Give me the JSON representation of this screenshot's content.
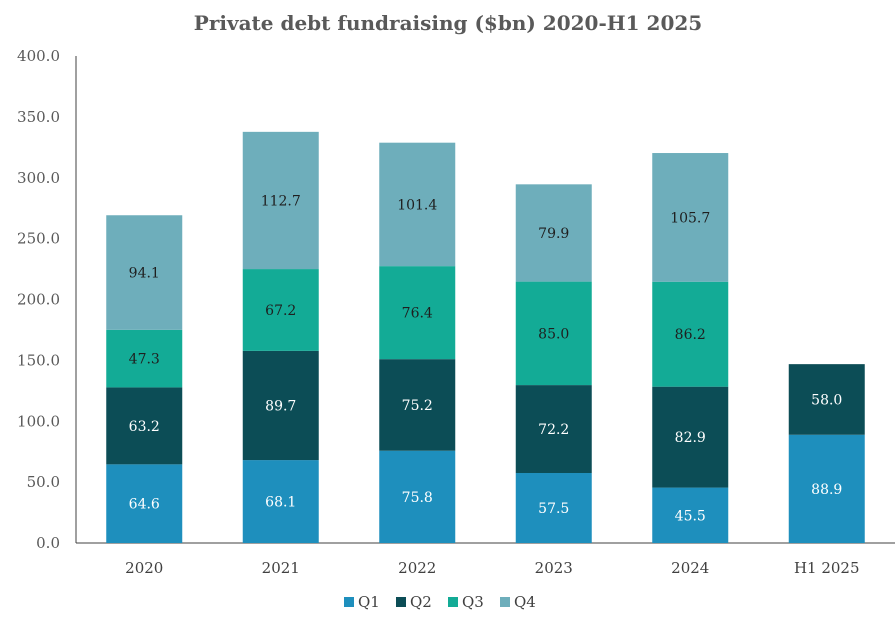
{
  "chart_data": {
    "type": "bar",
    "stacked": true,
    "title": "Private debt fundraising ($bn) 2020-H1 2025",
    "xlabel": "",
    "ylabel": "",
    "ylim": [
      0,
      400
    ],
    "yticks": [
      "0.0",
      "50.0",
      "100.0",
      "150.0",
      "200.0",
      "250.0",
      "300.0",
      "350.0",
      "400.0"
    ],
    "ytick_values": [
      0,
      50,
      100,
      150,
      200,
      250,
      300,
      350,
      400
    ],
    "categories": [
      "2020",
      "2021",
      "2022",
      "2023",
      "2024",
      "H1 2025"
    ],
    "series": [
      {
        "name": "Q1",
        "color": "#1e8fbd",
        "label_color": "#ffffff",
        "values": [
          64.6,
          68.1,
          75.8,
          57.5,
          45.5,
          88.9
        ],
        "labels": [
          "64.6",
          "68.1",
          "75.8",
          "57.5",
          "45.5",
          "88.9"
        ]
      },
      {
        "name": "Q2",
        "color": "#0c4d56",
        "label_color": "#ffffff",
        "values": [
          63.2,
          89.7,
          75.2,
          72.2,
          82.9,
          58.0
        ],
        "labels": [
          "63.2",
          "89.7",
          "75.2",
          "72.2",
          "82.9",
          "58.0"
        ]
      },
      {
        "name": "Q3",
        "color": "#13ab96",
        "label_color": "#1f1f1f",
        "values": [
          47.3,
          67.2,
          76.4,
          85.0,
          86.2,
          null
        ],
        "labels": [
          "47.3",
          "67.2",
          "76.4",
          "85.0",
          "86.2",
          ""
        ]
      },
      {
        "name": "Q4",
        "color": "#6eaebb",
        "label_color": "#1f1f1f",
        "values": [
          94.1,
          112.7,
          101.4,
          79.9,
          105.7,
          null
        ],
        "labels": [
          "94.1",
          "112.7",
          "101.4",
          "79.9",
          "105.7",
          ""
        ]
      }
    ],
    "legend_position": "bottom"
  }
}
